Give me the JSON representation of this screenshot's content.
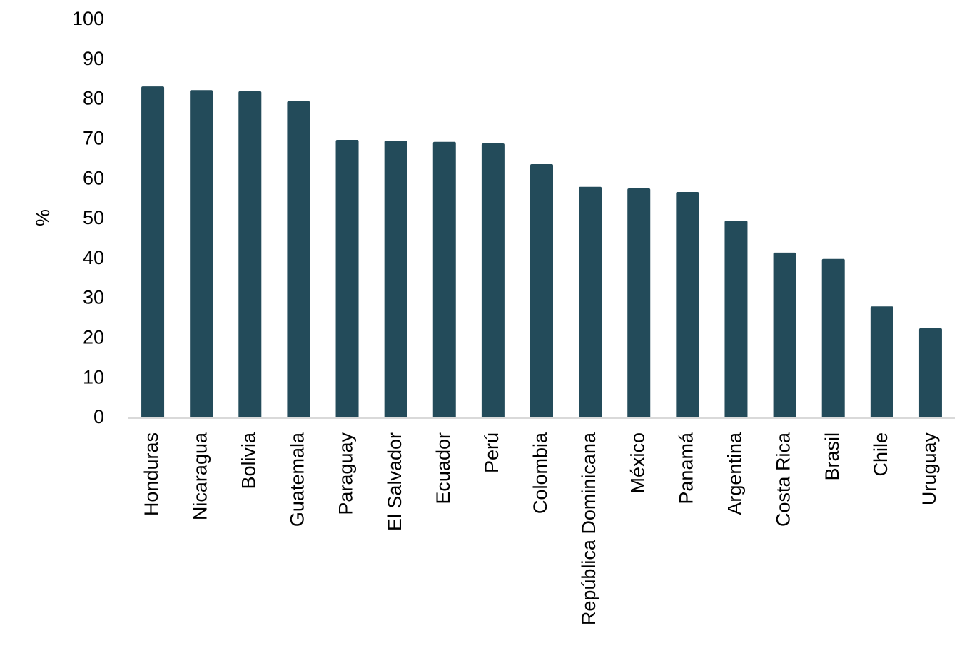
{
  "chart_data": {
    "type": "bar",
    "ylabel": "%",
    "categories": [
      "Honduras",
      "Nicaragua",
      "Bolivia",
      "Guatemala",
      "Paraguay",
      "El Salvador",
      "Ecuador",
      "Perú",
      "Colombia",
      "República Dominicana",
      "México",
      "Panamá",
      "Argentina",
      "Costa Rica",
      "Brasil",
      "Chile",
      "Uruguay"
    ],
    "values": [
      83.3,
      82.4,
      82.1,
      79.6,
      69.9,
      69.7,
      69.4,
      69.0,
      63.8,
      58.1,
      57.7,
      56.8,
      49.6,
      41.6,
      40.0,
      28.1,
      22.6
    ],
    "color": "#234b5a",
    "ylim": [
      0,
      100
    ],
    "yticks": [
      0,
      10,
      20,
      30,
      40,
      50,
      60,
      70,
      80,
      90,
      100
    ],
    "grid": false
  }
}
